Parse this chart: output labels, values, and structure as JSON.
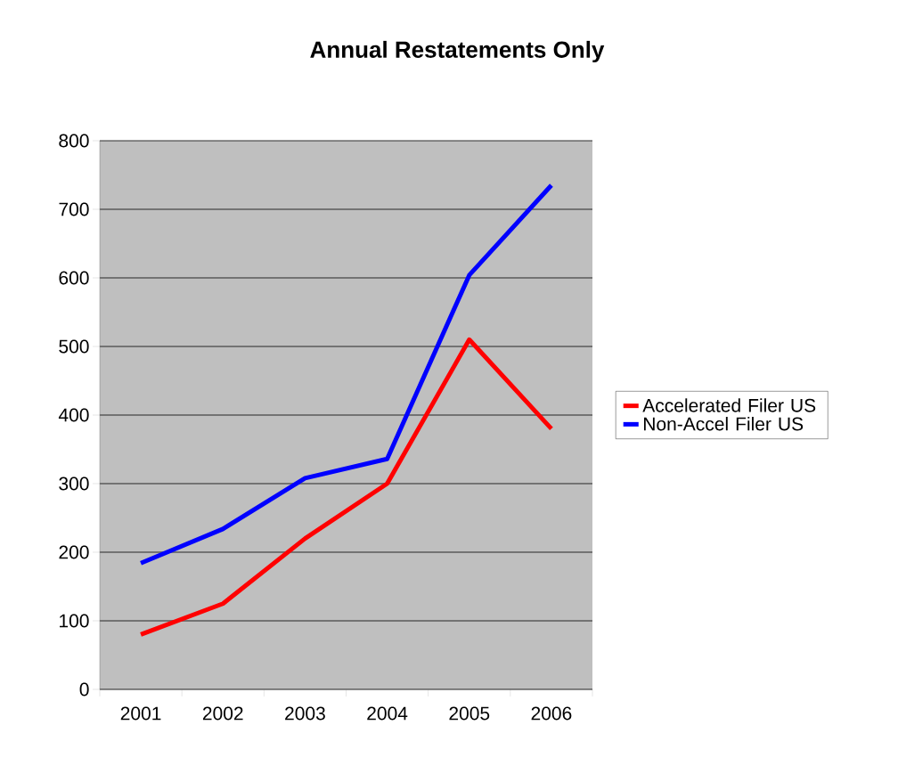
{
  "chart_data": {
    "type": "line",
    "title": "Annual Restatements Only",
    "categories": [
      "2001",
      "2002",
      "2003",
      "2004",
      "2005",
      "2006"
    ],
    "series": [
      {
        "name": "Accelerated Filer US",
        "color": "#ff0000",
        "values": [
          80,
          125,
          220,
          300,
          510,
          380
        ]
      },
      {
        "name": "Non-Accel Filer US",
        "color": "#0000ff",
        "values": [
          184,
          234,
          308,
          336,
          604,
          735
        ]
      }
    ],
    "ylim": [
      0,
      800
    ],
    "yticks": [
      0,
      100,
      200,
      300,
      400,
      500,
      600,
      700,
      800
    ],
    "grid": "y",
    "legend": "right",
    "marker": "none",
    "line_style": "solid"
  }
}
